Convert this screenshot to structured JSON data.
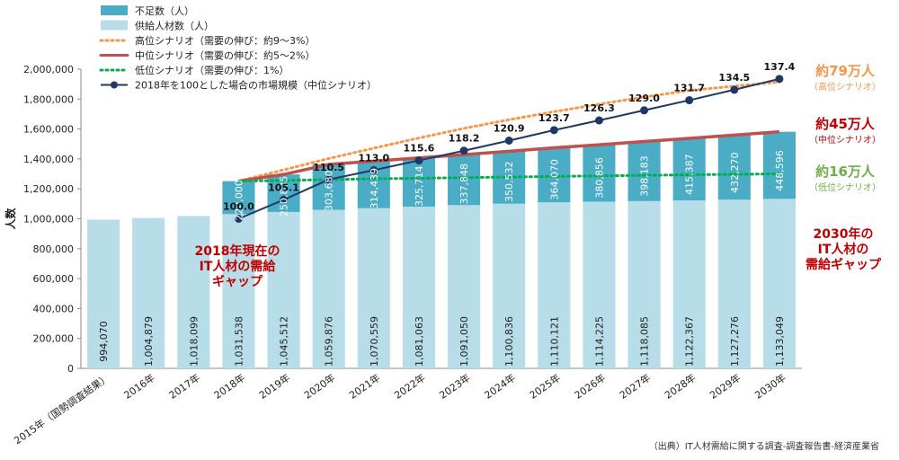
{
  "chart_data": {
    "type": "bar",
    "ylabel": "人数",
    "ylim": [
      0,
      2000000
    ],
    "yticks": [
      0,
      200000,
      400000,
      600000,
      800000,
      1000000,
      1200000,
      1400000,
      1600000,
      1800000,
      2000000
    ],
    "ytick_labels": [
      "0",
      "200,000",
      "400,000",
      "600,000",
      "800,000",
      "1,000,000",
      "1,200,000",
      "1,400,000",
      "1,600,000",
      "1,800,000",
      "2,000,000"
    ],
    "grid": false,
    "legend_position": "top-left",
    "categories": [
      "2015年（国勢調査結果）",
      "2016年",
      "2017年",
      "2018年",
      "2019年",
      "2020年",
      "2021年",
      "2022年",
      "2023年",
      "2024年",
      "2025年",
      "2026年",
      "2027年",
      "2028年",
      "2029年",
      "2030年"
    ],
    "series": [
      {
        "name": "不足数（人）",
        "kind": "bar-stacked",
        "color": "#4bacc6",
        "values": [
          null,
          null,
          null,
          220000,
          250835,
          303680,
          314439,
          325714,
          337848,
          350532,
          364070,
          380856,
          398183,
          415387,
          432270,
          448596
        ],
        "value_labels": [
          "",
          "",
          "",
          "220,000",
          "250,835",
          "303,680",
          "314,439",
          "325,714",
          "337,848",
          "350,532",
          "364,070",
          "380,856",
          "398,183",
          "415,387",
          "432,270",
          "448,596"
        ]
      },
      {
        "name": "供給人材数（人）",
        "kind": "bar-stacked",
        "color": "#b7dde8",
        "values": [
          994070,
          1004879,
          1018099,
          1031538,
          1045512,
          1059876,
          1070559,
          1081063,
          1091050,
          1100836,
          1110121,
          1114225,
          1118085,
          1122367,
          1127276,
          1133049
        ],
        "value_labels": [
          "994,070",
          "1,004,879",
          "1,018,099",
          "1,031,538",
          "1,045,512",
          "1,059,876",
          "1,070,559",
          "1,081,063",
          "1,091,050",
          "1,100,836",
          "1,110,121",
          "1,114,225",
          "1,118,085",
          "1,122,367",
          "1,127,276",
          "1,133,049"
        ]
      },
      {
        "name": "高位シナリオ（需要の伸び：約9～3%）",
        "kind": "line-dotted",
        "color": "#f79646",
        "start_index": 3,
        "values": [
          null,
          null,
          null,
          1251538,
          1327000,
          1403000,
          1472000,
          1540000,
          1604000,
          1662000,
          1716000,
          1766000,
          1814000,
          1858000,
          1886000,
          1915000
        ]
      },
      {
        "name": "中位シナリオ（需要の伸び：約5～2%）",
        "kind": "line-solid",
        "color": "#c0504d",
        "start_index": 3,
        "values": [
          null,
          null,
          null,
          1251538,
          1296347,
          1363556,
          1384998,
          1406777,
          1428898,
          1451368,
          1474191,
          1495081,
          1516268,
          1537754,
          1559546,
          1581645
        ]
      },
      {
        "name": "低位シナリオ（需要の伸び：1%）",
        "kind": "line-dotted",
        "color": "#00b050",
        "start_index": 3,
        "values": [
          null,
          null,
          null,
          1251538,
          1256000,
          1262000,
          1267000,
          1271000,
          1275000,
          1279000,
          1283000,
          1287000,
          1290000,
          1294000,
          1297000,
          1300000
        ]
      },
      {
        "name": "2018年を100とした場合の市場規模（中位シナリオ）",
        "kind": "line-markers",
        "color": "#1f3864",
        "secondary_axis": true,
        "secondary_ylim": [
          60,
          140
        ],
        "start_index": 3,
        "values": [
          null,
          null,
          null,
          100.0,
          105.1,
          110.5,
          113.0,
          115.6,
          118.2,
          120.9,
          123.7,
          126.3,
          129.0,
          131.7,
          134.5,
          137.4
        ],
        "value_labels": [
          "",
          "",
          "",
          "100.0",
          "105.1",
          "110.5",
          "113.0",
          "115.6",
          "118.2",
          "120.9",
          "123.7",
          "126.3",
          "129.0",
          "131.7",
          "134.5",
          "137.4"
        ]
      }
    ],
    "annotations": [
      {
        "name": "gap-2018",
        "lines": [
          "2018年現在の",
          "IT人材の需給",
          "ギャップ"
        ],
        "color": "#c00000"
      },
      {
        "name": "high-total",
        "main": "約79万人",
        "sub": "（高位シナリオ）",
        "color": "#f79646"
      },
      {
        "name": "mid-total",
        "main": "約45万人",
        "sub": "（中位シナリオ）",
        "color": "#c00000"
      },
      {
        "name": "low-total",
        "main": "約16万人",
        "sub": "（低位シナリオ）",
        "color": "#70ad47"
      },
      {
        "name": "gap-2030",
        "lines": [
          "2030年の",
          "IT人材の",
          "需給ギャップ"
        ],
        "color": "#c00000"
      }
    ],
    "source": "（出典）IT人材需給に関する調査-調査報告書-経済産業省"
  }
}
